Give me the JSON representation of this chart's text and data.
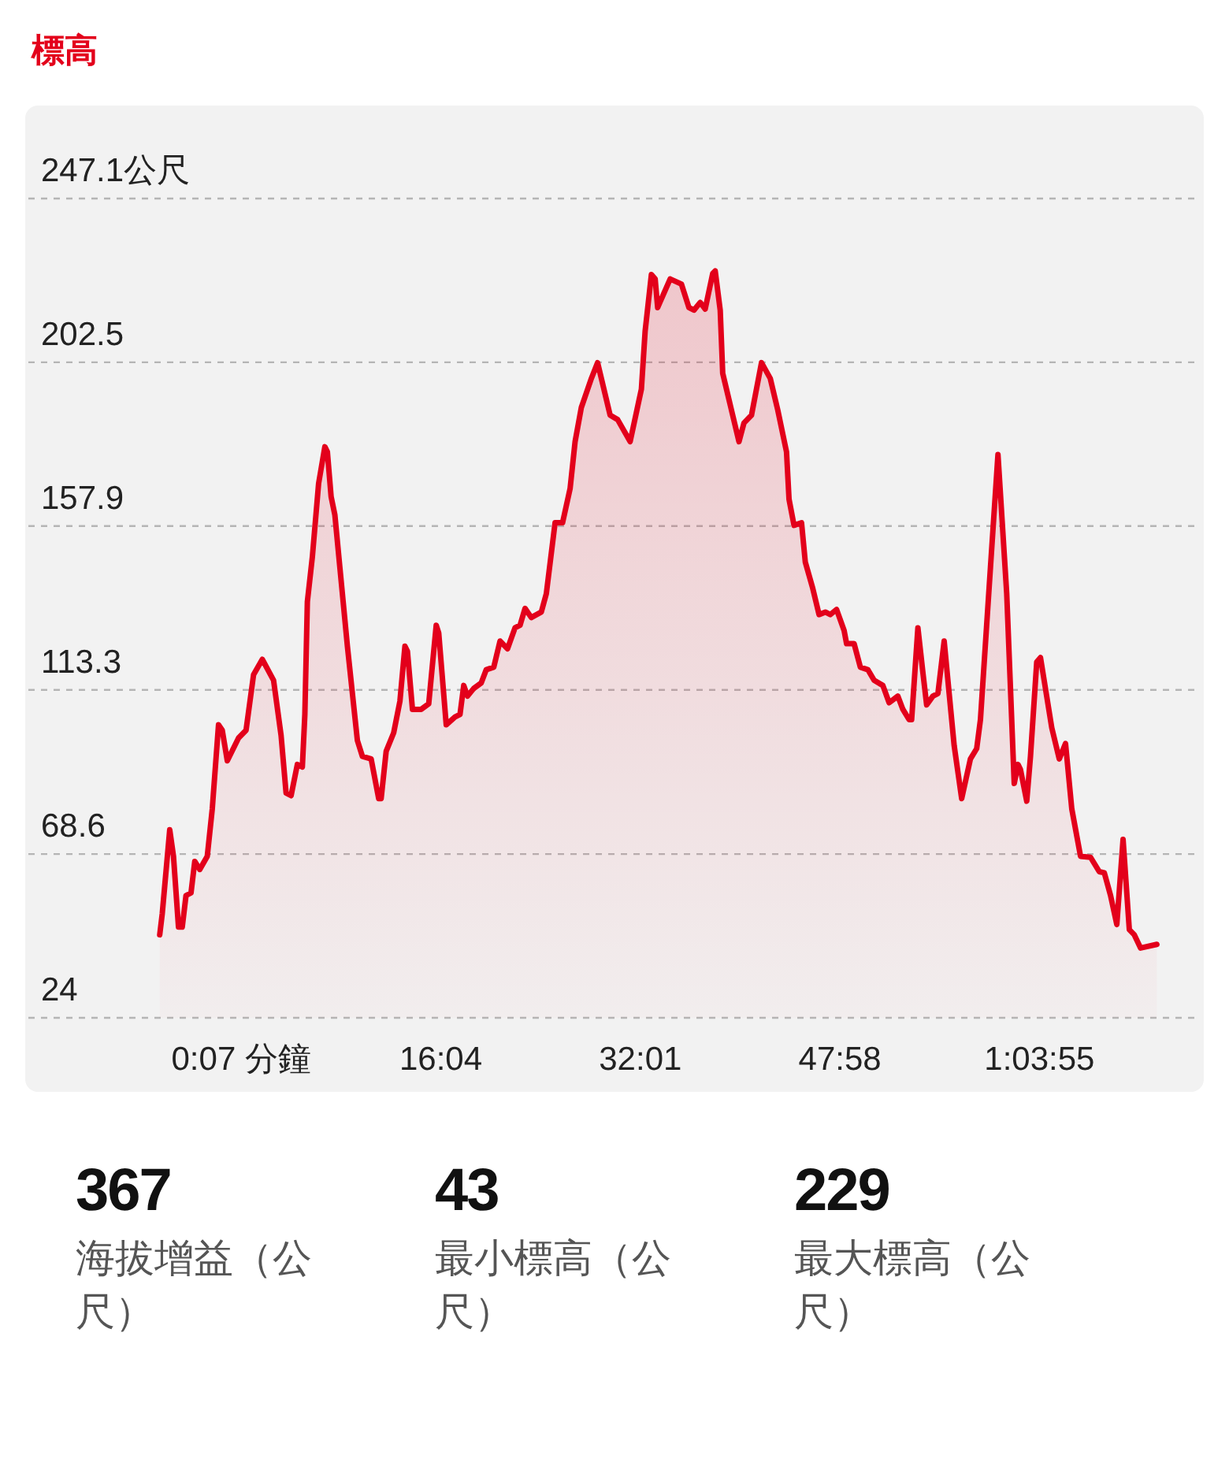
{
  "chart_data": [
    {
      "type": "area",
      "title": "標高",
      "xlim": [
        -16.9,
        76.8
      ],
      "ylim": [
        24.0,
        247.1
      ],
      "xticks": [
        {
          "value": 0.117,
          "label": "0:07 分鐘"
        },
        {
          "value": 16.067,
          "label": "16:04"
        },
        {
          "value": 32.017,
          "label": "32:01"
        },
        {
          "value": 47.967,
          "label": "47:58"
        },
        {
          "value": 63.917,
          "label": "1:03:55"
        }
      ],
      "yticks": [
        24.0,
        68.6,
        113.3,
        157.9,
        202.5,
        {
          "value": 247.1,
          "label": "247.1公尺"
        }
      ],
      "grid": "y",
      "line_style": "solid",
      "series": [
        {
          "color": "#e3001b",
          "x": [
            -6.4,
            -6.2,
            -5.6,
            -5.3,
            -4.9,
            -4.6,
            -4.3,
            -3.9,
            -3.6,
            -3.2,
            -2.6,
            -2.2,
            -1.7,
            -1.4,
            -1.0,
            -0.1,
            0.5,
            1.1,
            1.8,
            2.7,
            3.3,
            3.7,
            4.1,
            4.6,
            5.0,
            5.2,
            5.4,
            5.8,
            6.3,
            6.8,
            7.0,
            7.3,
            7.6,
            8.0,
            8.6,
            9.4,
            9.8,
            10.5,
            11.1,
            11.3,
            11.7,
            12.3,
            12.8,
            13.2,
            13.4,
            13.8,
            14.5,
            15.1,
            15.7,
            15.9,
            16.5,
            17.2,
            17.6,
            17.9,
            18.2,
            18.7,
            19.3,
            19.7,
            20.3,
            20.8,
            21.4,
            22.0,
            22.4,
            22.8,
            23.3,
            24.1,
            24.5,
            25.2,
            25.8,
            26.4,
            26.8,
            27.3,
            28.1,
            28.6,
            28.9,
            29.6,
            30.2,
            31.2,
            32.1,
            32.4,
            32.9,
            33.2,
            33.4,
            34.4,
            35.3,
            35.9,
            36.3,
            36.8,
            37.2,
            37.8,
            38.0,
            38.4,
            38.6,
            39.2,
            39.9,
            40.3,
            40.9,
            41.7,
            42.4,
            43.0,
            43.7,
            43.9,
            44.3,
            44.9,
            45.2,
            45.8,
            46.3,
            46.8,
            47.2,
            47.7,
            48.3,
            48.5,
            49.1,
            49.6,
            50.2,
            50.7,
            51.4,
            51.9,
            52.6,
            53.0,
            53.5,
            53.7,
            54.2,
            54.6,
            54.9,
            55.4,
            55.8,
            56.3,
            56.7,
            57.1,
            57.7,
            58.4,
            58.9,
            59.2,
            60.0,
            60.6,
            61.3,
            61.9,
            62.2,
            62.4,
            62.9,
            63.2,
            63.7,
            64.0,
            64.9,
            65.5,
            66.0,
            66.5,
            67.2,
            68.0,
            68.7,
            69.1,
            69.6,
            70.1,
            70.6,
            71.1,
            71.5,
            72.0,
            73.3
          ],
          "values": [
            46.6,
            52.3,
            75.2,
            68.0,
            48.7,
            48.7,
            57.3,
            58.0,
            66.6,
            64.4,
            68.0,
            80.9,
            103.8,
            102.3,
            94.0,
            100.2,
            102.3,
            117.4,
            121.6,
            115.9,
            100.9,
            85.2,
            84.5,
            93.0,
            92.3,
            106.6,
            137.3,
            149.5,
            169.5,
            179.5,
            178.1,
            165.9,
            160.9,
            146.6,
            125.2,
            99.5,
            95.2,
            94.5,
            83.7,
            83.7,
            96.6,
            101.6,
            110.2,
            125.2,
            123.8,
            108.0,
            108.0,
            109.5,
            130.9,
            128.8,
            103.8,
            105.9,
            106.6,
            114.5,
            111.6,
            113.7,
            115.2,
            118.8,
            119.5,
            126.6,
            124.5,
            130.2,
            130.9,
            135.5,
            133.0,
            134.5,
            139.5,
            158.8,
            158.8,
            168.1,
            180.9,
            190.2,
            198.1,
            202.4,
            198.1,
            188.1,
            186.9,
            180.9,
            195.2,
            211.0,
            226.4,
            225.2,
            217.4,
            225.2,
            223.8,
            217.4,
            216.7,
            218.8,
            217.0,
            226.7,
            227.4,
            216.7,
            199.5,
            190.9,
            180.9,
            186.0,
            188.1,
            202.4,
            198.1,
            189.5,
            178.1,
            165.2,
            158.1,
            158.8,
            148.1,
            140.9,
            133.8,
            134.5,
            133.8,
            135.2,
            129.5,
            125.9,
            125.9,
            119.5,
            118.8,
            115.9,
            114.5,
            109.8,
            111.6,
            108.0,
            105.2,
            105.2,
            130.2,
            118.0,
            109.2,
            111.6,
            112.3,
            126.6,
            112.3,
            98.1,
            83.7,
            94.5,
            97.3,
            105.2,
            146.6,
            177.4,
            139.5,
            87.8,
            93.0,
            91.6,
            83.0,
            95.2,
            120.9,
            122.1,
            103.0,
            94.5,
            98.7,
            80.9,
            68.0,
            67.7,
            63.8,
            63.5,
            57.3,
            49.4,
            72.6,
            48.0,
            46.6,
            43.0,
            44.0
          ]
        }
      ]
    },
    {
      "type": "other",
      "annotations": [
        "367",
        "海拔增益（公尺）",
        "43",
        "最小標高（公尺）",
        "229",
        "最大標高（公尺）"
      ]
    }
  ]
}
